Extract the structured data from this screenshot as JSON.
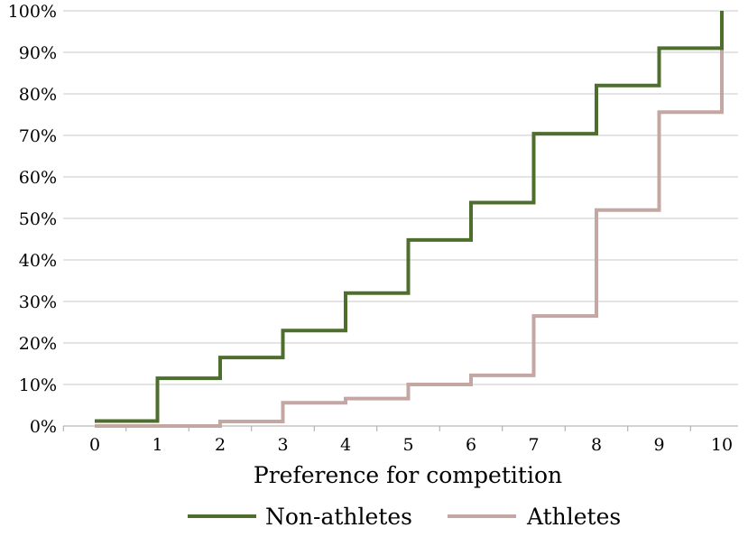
{
  "chart_data": {
    "type": "line",
    "step": true,
    "xlabel": "Preference for competition",
    "ylabel": "",
    "x": [
      0,
      1,
      2,
      3,
      4,
      5,
      6,
      7,
      8,
      9,
      10
    ],
    "xlim": [
      0,
      10
    ],
    "ylim": [
      0,
      100
    ],
    "y_ticks": [
      0,
      10,
      20,
      30,
      40,
      50,
      60,
      70,
      80,
      90,
      100
    ],
    "y_tick_labels": [
      "0%",
      "10%",
      "20%",
      "30%",
      "40%",
      "50%",
      "60%",
      "70%",
      "80%",
      "90%",
      "100%"
    ],
    "x_tick_labels": [
      "0",
      "1",
      "2",
      "3",
      "4",
      "5",
      "6",
      "7",
      "8",
      "9",
      "10"
    ],
    "grid": "horizontal",
    "legend_position": "bottom",
    "series": [
      {
        "name": "Non-athletes",
        "color": "#4e6e2e",
        "values": [
          1.2,
          11.5,
          16.5,
          23.0,
          32.0,
          44.8,
          53.8,
          70.4,
          82.0,
          91.0,
          100
        ]
      },
      {
        "name": "Athletes",
        "color": "#c4a6a2",
        "values": [
          0,
          0,
          1.1,
          5.6,
          6.6,
          10.0,
          12.2,
          26.5,
          52.0,
          75.6,
          100
        ]
      }
    ]
  }
}
